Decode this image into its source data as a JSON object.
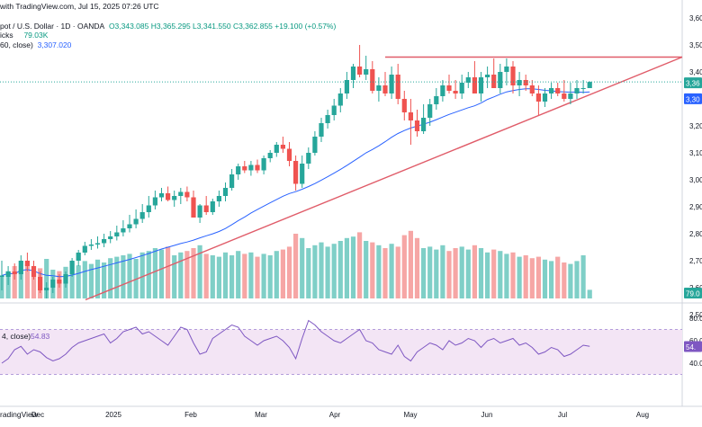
{
  "header": {
    "published": "with TradingView.com, Jul 15, 2025 07:26 UTC",
    "symbol": "pot / U.S. Dollar · 1D · OANDA",
    "ohlc": "O3,343.085  H3,365.295  L3,341.550  C3,362.855  +19.100 (+0.57%)",
    "volume_label": "icks",
    "volume_value": "79.03K",
    "ma_label": "60, close)",
    "ma_value": "3,307.020"
  },
  "footer": {
    "brand": "radingView"
  },
  "colors": {
    "up": "#26a69a",
    "down": "#ef5350",
    "vol_up": "#7fcfc7",
    "vol_down": "#f6a6a5",
    "ma": "#2962ff",
    "rsi": "#7e57c2",
    "rsi_band": "#f3e5f5",
    "trendline": "#e05c69"
  },
  "chart_data": {
    "type": "candlestick",
    "instrument": "pot / U.S. Dollar",
    "timeframe": "1D",
    "price_axis_ticks": [
      "3,600",
      "3,500",
      "3,400",
      "3,300",
      "3,200",
      "3,100",
      "3,000",
      "2,900",
      "2,800",
      "2,700",
      "2,600",
      "2,500"
    ],
    "price_axis_labels": {
      "last_price": "3,36",
      "ma_value": "3,30",
      "volume": "79.0"
    },
    "time_axis_ticks": [
      "Dec",
      "2025",
      "Feb",
      "Mar",
      "Apr",
      "May",
      "Jun",
      "Jul",
      "Aug"
    ],
    "price_range": [
      2500,
      3600
    ],
    "candles": {
      "open": [
        2640,
        2640,
        2660,
        2650,
        2700,
        2680,
        2640,
        2590,
        2600,
        2630,
        2615,
        2650,
        2700,
        2730,
        2755,
        2760,
        2765,
        2780,
        2790,
        2805,
        2820,
        2835,
        2855,
        2880,
        2905,
        2935,
        2950,
        2925,
        2940,
        2955,
        2935,
        2860,
        2905,
        2880,
        2920,
        2940,
        2970,
        3020,
        3050,
        3035,
        3055,
        3035,
        3080,
        3100,
        3130,
        3115,
        3070,
        2985,
        3060,
        3100,
        3160,
        3210,
        3240,
        3275,
        3320,
        3370,
        3420,
        3390,
        3410,
        3330,
        3350,
        3320,
        3390,
        3300,
        3250,
        3220,
        3180,
        3230,
        3280,
        3310,
        3350,
        3330,
        3320,
        3360,
        3380,
        3320,
        3380,
        3390,
        3340,
        3400,
        3420,
        3350,
        3370,
        3350,
        3320,
        3290,
        3320,
        3340,
        3320,
        3300,
        3320,
        3340,
        3340
      ],
      "high": [
        2700,
        2680,
        2690,
        2720,
        2730,
        2700,
        2660,
        2620,
        2640,
        2650,
        2660,
        2710,
        2740,
        2770,
        2780,
        2790,
        2800,
        2810,
        2830,
        2850,
        2870,
        2890,
        2910,
        2940,
        2960,
        2970,
        2975,
        2960,
        2970,
        2975,
        2960,
        2910,
        2940,
        2930,
        2960,
        2990,
        3040,
        3060,
        3070,
        3070,
        3075,
        3090,
        3110,
        3140,
        3160,
        3140,
        3090,
        3090,
        3120,
        3180,
        3230,
        3260,
        3300,
        3340,
        3400,
        3430,
        3500,
        3460,
        3440,
        3380,
        3400,
        3420,
        3430,
        3330,
        3300,
        3260,
        3280,
        3300,
        3340,
        3370,
        3390,
        3370,
        3390,
        3400,
        3440,
        3400,
        3420,
        3450,
        3430,
        3450,
        3440,
        3400,
        3390,
        3370,
        3350,
        3340,
        3360,
        3360,
        3370,
        3360,
        3370,
        3370,
        3365
      ],
      "low": [
        2590,
        2610,
        2630,
        2630,
        2660,
        2630,
        2580,
        2560,
        2580,
        2600,
        2600,
        2640,
        2680,
        2720,
        2740,
        2745,
        2750,
        2765,
        2775,
        2790,
        2805,
        2820,
        2840,
        2860,
        2890,
        2920,
        2920,
        2900,
        2910,
        2920,
        2860,
        2840,
        2870,
        2870,
        2900,
        2920,
        2960,
        3000,
        3025,
        3015,
        3025,
        3020,
        3065,
        3085,
        3100,
        3050,
        2960,
        2970,
        3040,
        3090,
        3140,
        3190,
        3220,
        3250,
        3300,
        3340,
        3380,
        3370,
        3320,
        3290,
        3310,
        3300,
        3280,
        3220,
        3130,
        3160,
        3170,
        3200,
        3260,
        3290,
        3320,
        3300,
        3300,
        3340,
        3320,
        3290,
        3340,
        3350,
        3320,
        3350,
        3320,
        3310,
        3330,
        3310,
        3240,
        3270,
        3300,
        3310,
        3290,
        3280,
        3300,
        3320,
        3340
      ],
      "close": [
        2645,
        2660,
        2650,
        2700,
        2680,
        2640,
        2590,
        2600,
        2630,
        2615,
        2650,
        2700,
        2730,
        2755,
        2760,
        2765,
        2780,
        2790,
        2805,
        2820,
        2835,
        2855,
        2880,
        2905,
        2935,
        2950,
        2925,
        2940,
        2955,
        2935,
        2860,
        2905,
        2880,
        2920,
        2940,
        2970,
        3020,
        3050,
        3035,
        3055,
        3035,
        3080,
        3100,
        3130,
        3115,
        3070,
        2985,
        3060,
        3100,
        3160,
        3210,
        3240,
        3275,
        3320,
        3370,
        3420,
        3390,
        3410,
        3330,
        3350,
        3320,
        3390,
        3300,
        3250,
        3220,
        3180,
        3230,
        3280,
        3310,
        3350,
        3330,
        3320,
        3360,
        3380,
        3320,
        3380,
        3390,
        3340,
        3400,
        3420,
        3350,
        3370,
        3350,
        3320,
        3290,
        3320,
        3340,
        3320,
        3300,
        3320,
        3340,
        3340,
        3363
      ]
    },
    "volume_units": "relative",
    "volume": [
      32,
      38,
      45,
      40,
      48,
      36,
      42,
      55,
      40,
      38,
      44,
      50,
      46,
      52,
      48,
      54,
      50,
      56,
      58,
      60,
      62,
      55,
      64,
      66,
      70,
      68,
      72,
      60,
      64,
      66,
      70,
      74,
      62,
      60,
      58,
      64,
      60,
      66,
      62,
      64,
      58,
      62,
      60,
      66,
      68,
      72,
      90,
      84,
      70,
      74,
      78,
      72,
      76,
      80,
      84,
      86,
      92,
      80,
      78,
      74,
      70,
      76,
      72,
      88,
      94,
      84,
      70,
      72,
      68,
      74,
      66,
      70,
      72,
      68,
      74,
      70,
      64,
      68,
      66,
      62,
      64,
      58,
      60,
      56,
      58,
      54,
      52,
      58,
      50,
      48,
      52,
      60,
      12
    ],
    "ma_series": {
      "name": "MA (60, close)",
      "last_value": 3307.02
    },
    "rsi": {
      "name": "RSI",
      "last_value": 54.83,
      "axis_ticks": [
        "80.0",
        "60.0",
        "40.0"
      ],
      "band": [
        30,
        70
      ],
      "values": [
        40,
        44,
        52,
        55,
        48,
        52,
        50,
        45,
        42,
        44,
        48,
        54,
        58,
        60,
        62,
        64,
        66,
        58,
        62,
        68,
        70,
        72,
        66,
        68,
        64,
        60,
        56,
        64,
        72,
        70,
        58,
        48,
        50,
        62,
        66,
        70,
        74,
        72,
        64,
        60,
        56,
        60,
        62,
        64,
        60,
        54,
        44,
        62,
        78,
        74,
        68,
        64,
        60,
        58,
        62,
        66,
        70,
        60,
        58,
        52,
        50,
        48,
        56,
        46,
        42,
        50,
        54,
        58,
        56,
        52,
        60,
        56,
        58,
        62,
        60,
        54,
        60,
        62,
        58,
        60,
        62,
        56,
        58,
        54,
        48,
        50,
        54,
        52,
        46,
        48,
        52,
        56,
        55
      ]
    },
    "trendlines": [
      {
        "from": [
          "Nov",
          2555
        ],
        "to": [
          "Aug",
          3455
        ]
      },
      {
        "horizontal": 3455,
        "from": [
          "Apr",
          3455
        ],
        "to": [
          "Aug",
          3455
        ]
      }
    ]
  }
}
